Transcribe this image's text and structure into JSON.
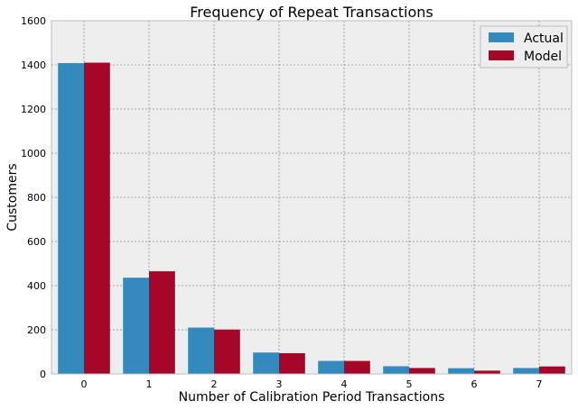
{
  "chart_data": {
    "type": "bar",
    "title": "Frequency of Repeat Transactions",
    "xlabel": "Number of Calibration Period Transactions",
    "ylabel": "Customers",
    "categories": [
      "0",
      "1",
      "2",
      "3",
      "4",
      "5",
      "6",
      "7"
    ],
    "series": [
      {
        "name": "Actual",
        "color": "#348ABD",
        "values": [
          1408,
          436,
          210,
          97,
          59,
          35,
          26,
          27
        ]
      },
      {
        "name": "Model",
        "color": "#A60628",
        "values": [
          1410,
          465,
          201,
          94,
          59,
          27,
          15,
          34
        ]
      }
    ],
    "ylim": [
      0,
      1600
    ],
    "yticks": [
      "0",
      "200",
      "400",
      "600",
      "800",
      "1000",
      "1200",
      "1400",
      "1600"
    ],
    "grid": true,
    "legend": "top-right",
    "background": "#EEEEEE"
  }
}
